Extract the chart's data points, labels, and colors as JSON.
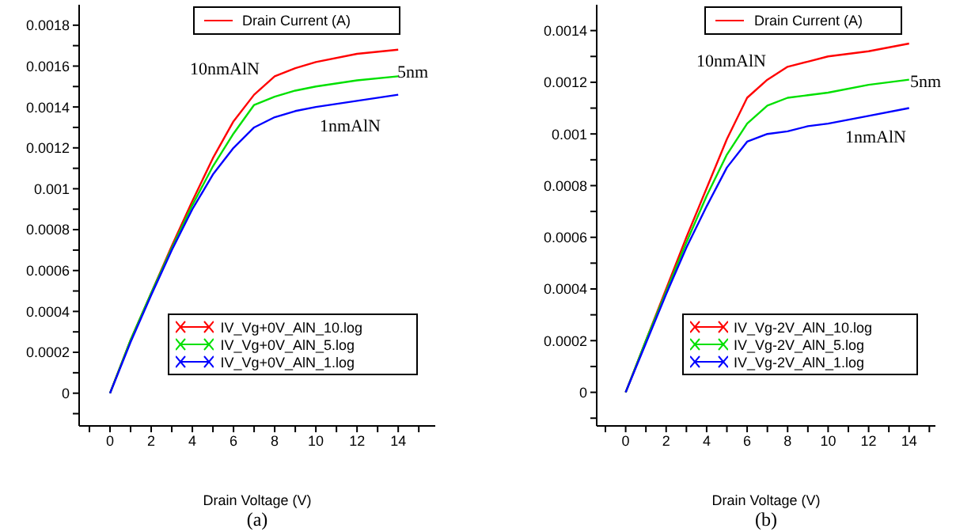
{
  "chart_data": [
    {
      "type": "line",
      "title": "(a)",
      "xlabel": "Drain Voltage (V)",
      "ylabel": "Drain Current (A)",
      "legend": "right",
      "grid": false,
      "x": [
        0,
        1,
        2,
        3,
        4,
        5,
        6,
        7,
        8,
        9,
        10,
        12,
        14
      ],
      "series": [
        {
          "name": "IV_Vg+0V_AlN_10.log",
          "color": "#ff0000",
          "values": [
            0,
            0.00026,
            0.00049,
            0.00072,
            0.00094,
            0.00115,
            0.00133,
            0.00146,
            0.00155,
            0.00159,
            0.00162,
            0.00166,
            0.00168
          ]
        },
        {
          "name": "IV_Vg+0V_AlN_5.log",
          "color": "#00e000",
          "values": [
            0,
            0.00026,
            0.00049,
            0.00071,
            0.00092,
            0.00111,
            0.00127,
            0.00141,
            0.00145,
            0.00148,
            0.0015,
            0.00153,
            0.00155
          ]
        },
        {
          "name": "IV_Vg+0V_AlN_1.log",
          "color": "#0000ff",
          "values": [
            0,
            0.00025,
            0.00048,
            0.0007,
            0.0009,
            0.00107,
            0.0012,
            0.0013,
            0.00135,
            0.00138,
            0.0014,
            0.00143,
            0.00146
          ]
        }
      ],
      "xlim": [
        -1.5,
        15.8
      ],
      "xticks": [
        {
          "value": -1,
          "label": null
        },
        0,
        {
          "value": 1,
          "label": null
        },
        2,
        {
          "value": 3,
          "label": null
        },
        4,
        {
          "value": 5,
          "label": null
        },
        6,
        {
          "value": 7,
          "label": null
        },
        8,
        {
          "value": 9,
          "label": null
        },
        10,
        {
          "value": 11,
          "label": null
        },
        12,
        {
          "value": 13,
          "label": null
        },
        14,
        {
          "value": 15,
          "label": null
        }
      ],
      "ylim": [
        -0.00016,
        0.0019
      ],
      "yticks": [
        {
          "value": -0.0001,
          "label": null
        },
        0,
        {
          "value": 0.0001,
          "label": null
        },
        0.0002,
        {
          "value": 0.0003,
          "label": null
        },
        0.0004,
        {
          "value": 0.0005,
          "label": null
        },
        0.0006,
        {
          "value": 0.0007,
          "label": null
        },
        0.0008,
        {
          "value": 0.0009,
          "label": null
        },
        0.001,
        {
          "value": 0.0011,
          "label": null
        },
        0.0012,
        {
          "value": 0.0013,
          "label": null
        },
        0.0014,
        {
          "value": 0.0015,
          "label": null
        },
        0.0016,
        {
          "value": 0.0017,
          "label": null
        },
        0.0018
      ],
      "annotations": [
        "10nmAlN",
        "5nm",
        "1nmAlN"
      ]
    },
    {
      "type": "line",
      "title": "(b)",
      "xlabel": "Drain Voltage (V)",
      "ylabel": "Drain Current (A)",
      "legend": "right",
      "grid": false,
      "x": [
        0,
        1,
        2,
        3,
        4,
        5,
        6,
        7,
        8,
        9,
        10,
        12,
        14
      ],
      "series": [
        {
          "name": "IV_Vg-2V_AlN_10.log",
          "color": "#ff0000",
          "values": [
            0,
            0.0002,
            0.0004,
            0.0006,
            0.00079,
            0.00098,
            0.00114,
            0.00121,
            0.00126,
            0.00128,
            0.0013,
            0.00132,
            0.00135
          ]
        },
        {
          "name": "IV_Vg-2V_AlN_5.log",
          "color": "#00e000",
          "values": [
            0,
            0.0002,
            0.00039,
            0.00058,
            0.00076,
            0.00092,
            0.00104,
            0.00111,
            0.00114,
            0.00115,
            0.00116,
            0.00119,
            0.00121
          ]
        },
        {
          "name": "IV_Vg-2V_AlN_1.log",
          "color": "#0000ff",
          "values": [
            0,
            0.00019,
            0.00038,
            0.00056,
            0.00072,
            0.00087,
            0.00097,
            0.001,
            0.00101,
            0.00103,
            0.00104,
            0.00107,
            0.0011
          ]
        }
      ],
      "xlim": [
        -1.43,
        15.3
      ],
      "xticks": [
        {
          "value": -1,
          "label": null
        },
        0,
        {
          "value": 1,
          "label": null
        },
        2,
        {
          "value": 3,
          "label": null
        },
        4,
        {
          "value": 5,
          "label": null
        },
        6,
        {
          "value": 7,
          "label": null
        },
        8,
        {
          "value": 9,
          "label": null
        },
        10,
        {
          "value": 11,
          "label": null
        },
        12,
        {
          "value": 13,
          "label": null
        },
        14,
        {
          "value": 15,
          "label": null
        }
      ],
      "ylim": [
        -0.00013,
        0.0015
      ],
      "yticks": [
        {
          "value": -0.0001,
          "label": null
        },
        0,
        {
          "value": 0.0001,
          "label": null
        },
        0.0002,
        {
          "value": 0.0003,
          "label": null
        },
        0.0004,
        {
          "value": 0.0005,
          "label": null
        },
        0.0006,
        {
          "value": 0.0007,
          "label": null
        },
        0.0008,
        {
          "value": 0.0009,
          "label": null
        },
        0.001,
        {
          "value": 0.0011,
          "label": null
        },
        0.0012,
        {
          "value": 0.0013,
          "label": null
        },
        0.0014
      ],
      "annotations": [
        "10nmAlN",
        "5nm",
        "1nmAlN"
      ]
    }
  ]
}
